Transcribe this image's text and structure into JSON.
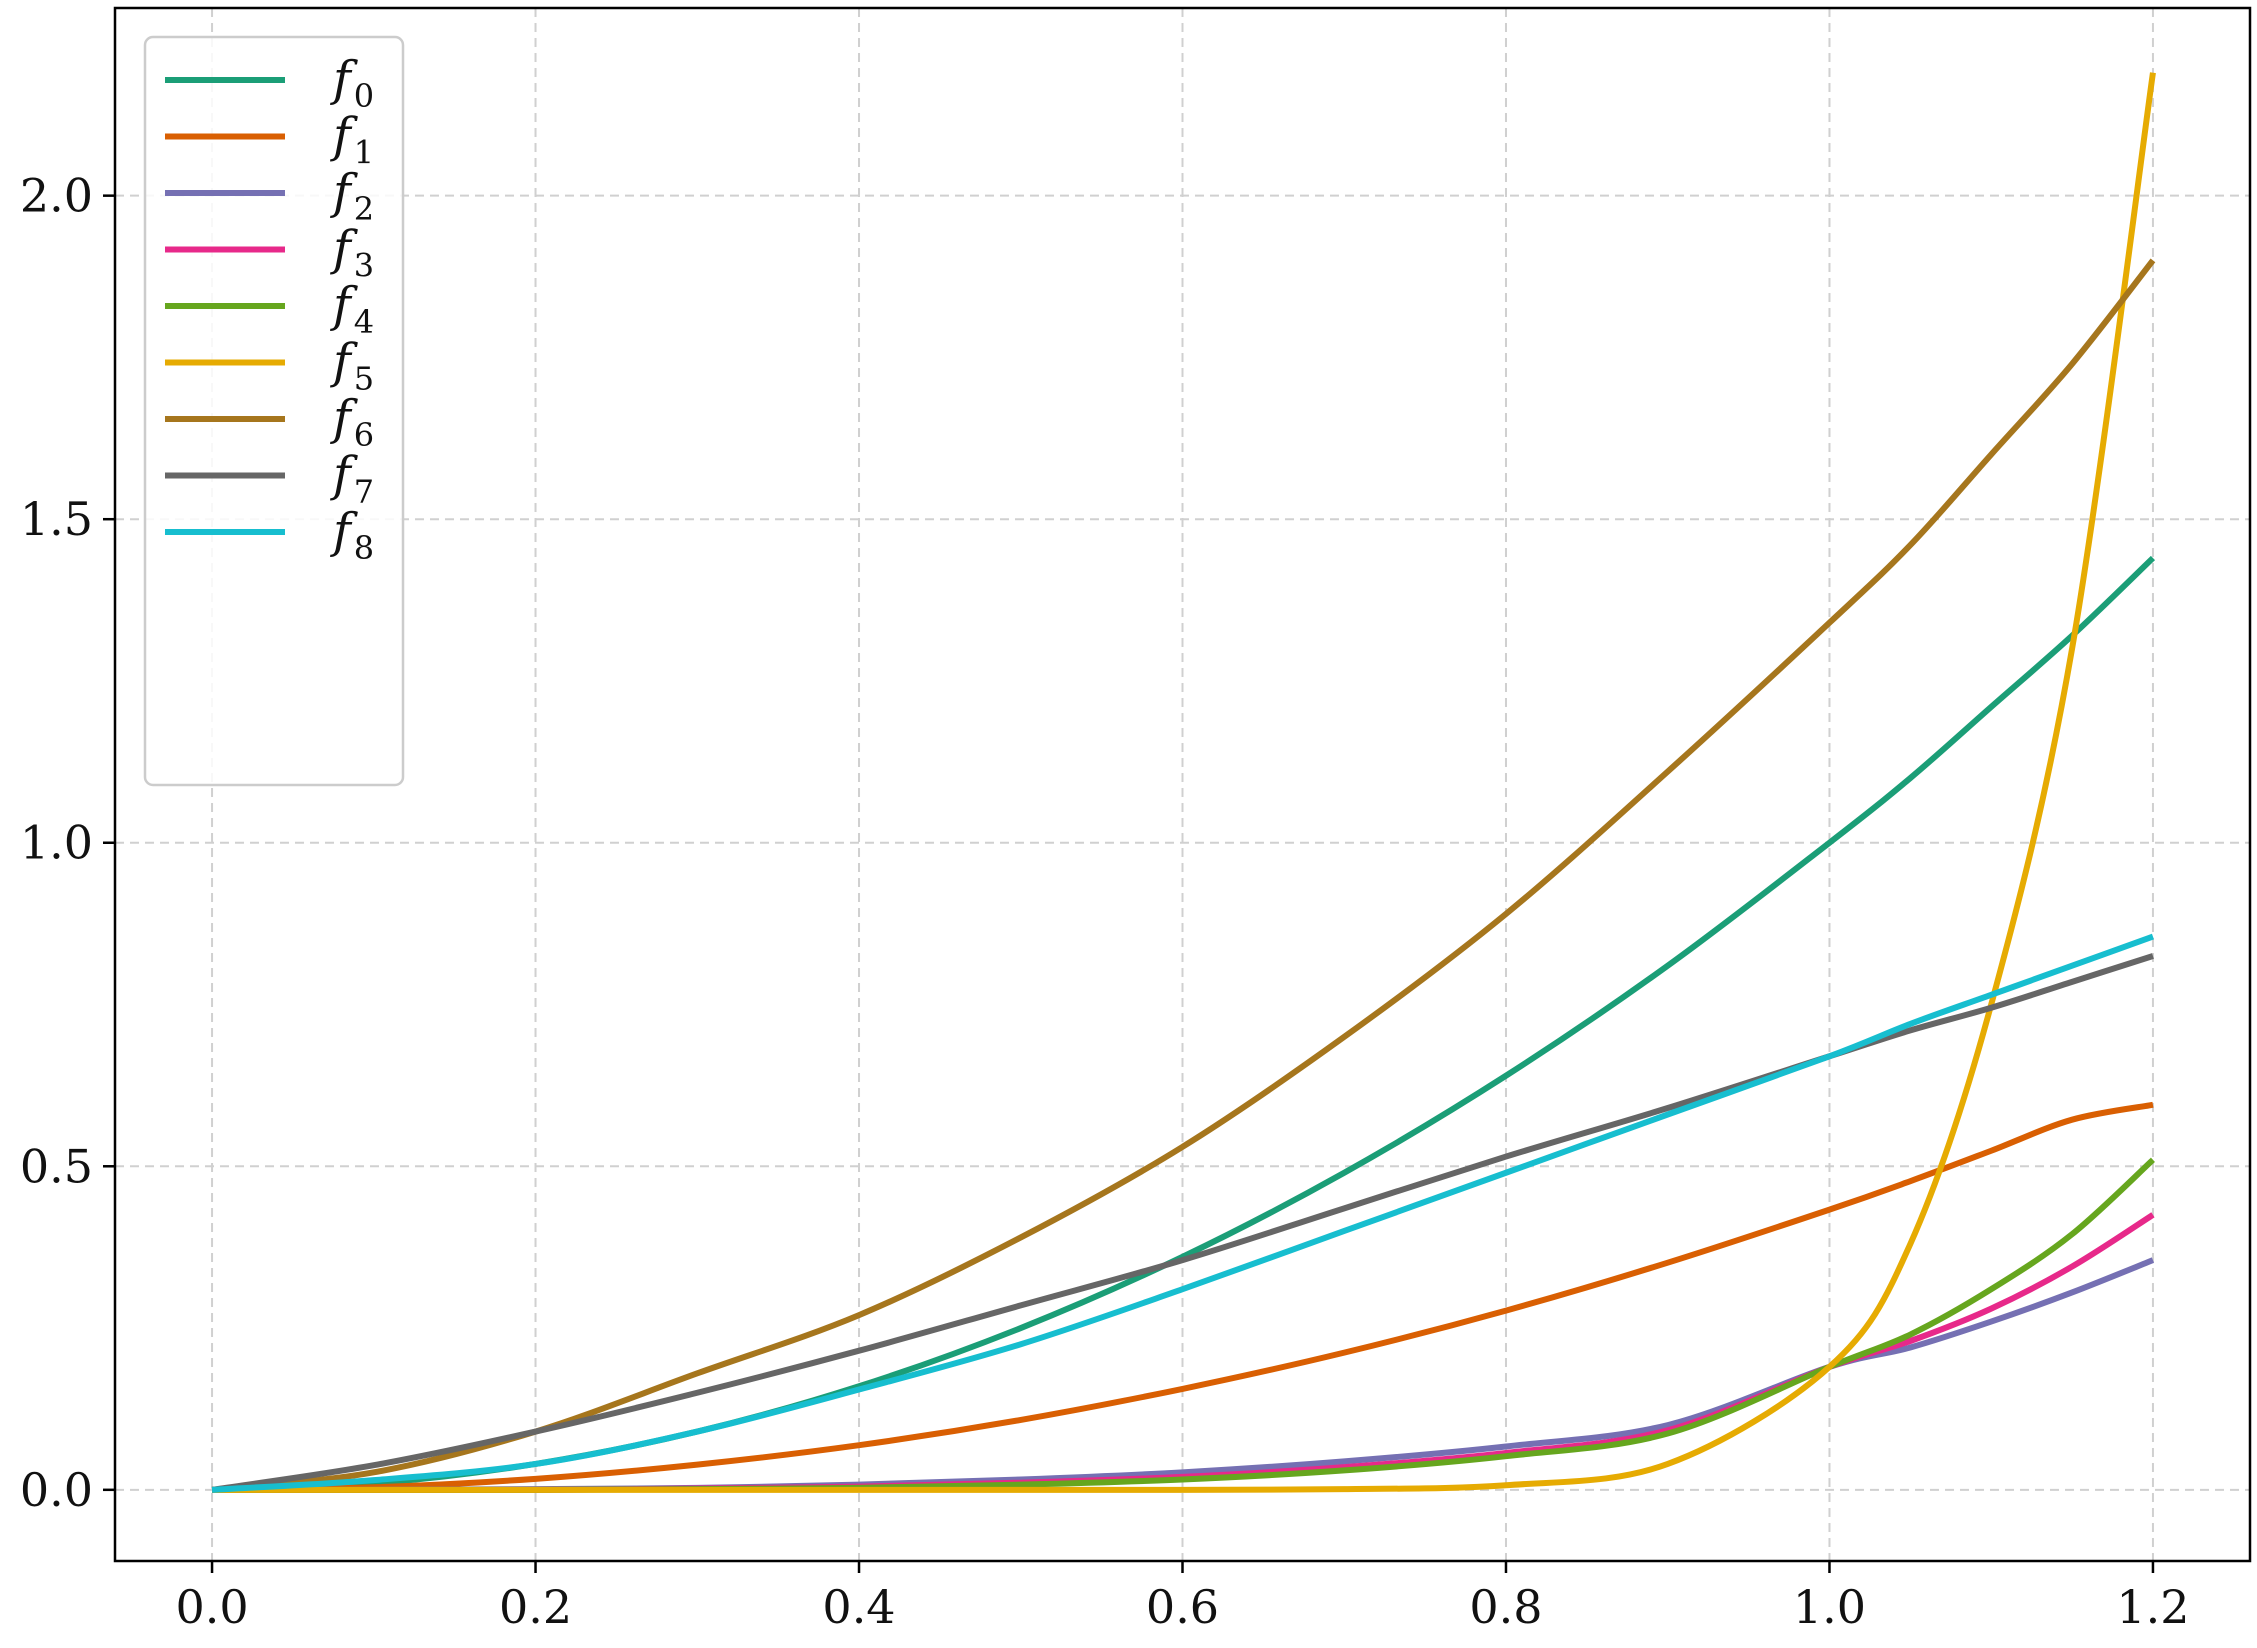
{
  "chart_data": {
    "type": "line",
    "title": "",
    "xlabel": "",
    "ylabel": "",
    "xlim": [
      -0.06,
      1.26
    ],
    "ylim": [
      -0.11,
      2.29
    ],
    "xticks": [
      0.0,
      0.2,
      0.4,
      0.6,
      0.8,
      1.0,
      1.2
    ],
    "xtick_labels": [
      "0.0",
      "0.2",
      "0.4",
      "0.6",
      "0.8",
      "1.0",
      "1.2"
    ],
    "yticks": [
      0.0,
      0.5,
      1.0,
      1.5,
      2.0
    ],
    "ytick_labels": [
      "0.0",
      "0.5",
      "1.0",
      "1.5",
      "2.0"
    ],
    "grid": true,
    "grid_style": "dashed",
    "legend_position": "top-left",
    "x": [
      0.0,
      0.1,
      0.2,
      0.3,
      0.4,
      0.5,
      0.6,
      0.7,
      0.8,
      0.9,
      1.0,
      1.05,
      1.1,
      1.15,
      1.2
    ],
    "series": [
      {
        "name": "f",
        "sub": "0",
        "color": "#1b9e77",
        "values": [
          0.0,
          0.01,
          0.04,
          0.09,
          0.16,
          0.25,
          0.36,
          0.49,
          0.64,
          0.81,
          1.0,
          1.1,
          1.21,
          1.32,
          1.44
        ]
      },
      {
        "name": "f",
        "sub": "1",
        "color": "#d95f02",
        "values": [
          0.0,
          0.004,
          0.017,
          0.039,
          0.069,
          0.108,
          0.156,
          0.212,
          0.277,
          0.351,
          0.433,
          0.477,
          0.524,
          0.572,
          0.595
        ]
      },
      {
        "name": "f",
        "sub": "2",
        "color": "#7570b3",
        "values": [
          0.0,
          0.0,
          0.001,
          0.003,
          0.008,
          0.016,
          0.027,
          0.044,
          0.067,
          0.1,
          0.19,
          0.22,
          0.26,
          0.305,
          0.355
        ]
      },
      {
        "name": "f",
        "sub": "3",
        "color": "#e7298a",
        "values": [
          0.0,
          0.0,
          0.0,
          0.002,
          0.005,
          0.011,
          0.02,
          0.035,
          0.057,
          0.092,
          0.19,
          0.23,
          0.28,
          0.345,
          0.425
        ]
      },
      {
        "name": "f",
        "sub": "4",
        "color": "#66a61e",
        "values": [
          0.0,
          0.0,
          0.0,
          0.001,
          0.003,
          0.008,
          0.016,
          0.03,
          0.052,
          0.087,
          0.19,
          0.24,
          0.31,
          0.395,
          0.51
        ]
      },
      {
        "name": "f",
        "sub": "5",
        "color": "#e6ab02",
        "values": [
          0.0,
          0.0,
          0.0,
          0.0,
          0.0,
          0.0,
          0.0,
          0.001,
          0.007,
          0.04,
          0.19,
          0.38,
          0.75,
          1.3,
          2.19
        ]
      },
      {
        "name": "f",
        "sub": "6",
        "color": "#a6761d",
        "values": [
          0.0,
          0.027,
          0.09,
          0.18,
          0.27,
          0.39,
          0.53,
          0.7,
          0.89,
          1.11,
          1.34,
          1.46,
          1.6,
          1.74,
          1.9
        ]
      },
      {
        "name": "f",
        "sub": "7",
        "color": "#666666",
        "values": [
          0.0,
          0.038,
          0.09,
          0.15,
          0.215,
          0.285,
          0.355,
          0.435,
          0.515,
          0.59,
          0.67,
          0.71,
          0.745,
          0.785,
          0.825
        ]
      },
      {
        "name": "f",
        "sub": "8",
        "color": "#17becf",
        "values": [
          0.0,
          0.015,
          0.04,
          0.09,
          0.155,
          0.225,
          0.31,
          0.4,
          0.49,
          0.58,
          0.67,
          0.72,
          0.765,
          0.81,
          0.855
        ]
      }
    ]
  }
}
